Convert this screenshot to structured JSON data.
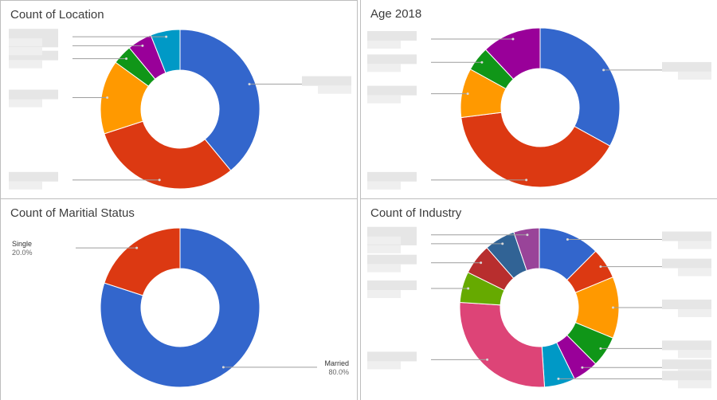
{
  "chart_data": [
    {
      "type": "pie",
      "donut": true,
      "title": "Count of Location",
      "series": [
        {
          "values": [
            39,
            31,
            15,
            4,
            5,
            6
          ]
        }
      ],
      "colors": [
        "#3366cc",
        "#dc3912",
        "#ff9900",
        "#109618",
        "#990099",
        "#0099c6"
      ],
      "labels_obscured": true
    },
    {
      "type": "pie",
      "donut": true,
      "title": "Age 2018",
      "series": [
        {
          "values": [
            33,
            40,
            10,
            5,
            12
          ]
        }
      ],
      "colors": [
        "#3366cc",
        "#dc3912",
        "#ff9900",
        "#109618",
        "#990099"
      ],
      "labels_obscured": true
    },
    {
      "type": "pie",
      "donut": true,
      "title": "Count of Maritial Status",
      "categories": [
        "Married",
        "Single"
      ],
      "series": [
        {
          "values": [
            80.0,
            20.0
          ]
        }
      ],
      "percent_labels": [
        "80.0%",
        "20.0%"
      ],
      "colors": [
        "#3366cc",
        "#dc3912"
      ]
    },
    {
      "type": "pie",
      "donut": true,
      "title": "Count of Industry",
      "series": [
        {
          "values": [
            12,
            6,
            12,
            6,
            5,
            6,
            26,
            6,
            6,
            6,
            5
          ]
        }
      ],
      "colors": [
        "#3366cc",
        "#dc3912",
        "#ff9900",
        "#109618",
        "#990099",
        "#0099c6",
        "#dd4477",
        "#66aa00",
        "#b82e2e",
        "#316395",
        "#994499"
      ],
      "labels_obscured": true
    }
  ]
}
